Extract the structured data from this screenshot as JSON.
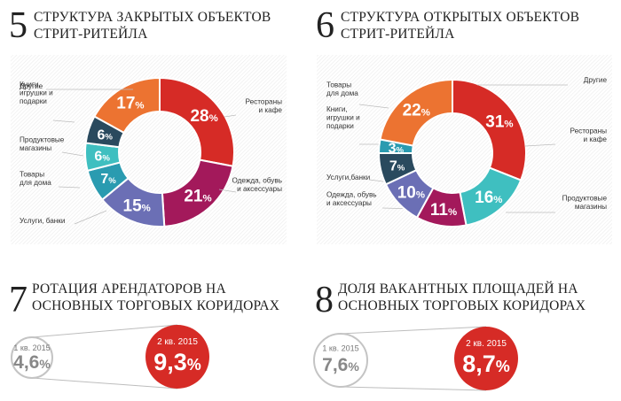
{
  "chart_data": [
    {
      "type": "pie",
      "number": "5",
      "title": [
        "СТРУКТУРА ЗАКРЫТЫХ ОБЪЕКТОВ",
        "СТРИТ-РИТЕЙЛА"
      ],
      "slices": [
        {
          "value": 28,
          "label": "28",
          "name": [
            "Рестораны",
            "и кафе"
          ],
          "color": "#d62b26"
        },
        {
          "value": 21,
          "label": "21",
          "name": [
            "Одежда, обувь",
            "и аксессуары"
          ],
          "color": "#a3195b"
        },
        {
          "value": 15,
          "label": "15",
          "name": [
            "Услуги, банки"
          ],
          "color": "#6b6fb5"
        },
        {
          "value": 7,
          "label": "7",
          "name": [
            "Товары",
            "для дома"
          ],
          "color": "#2a9bb0"
        },
        {
          "value": 6,
          "label": "6",
          "name": [
            "Продуктовые",
            "магазины"
          ],
          "color": "#3fbfc0"
        },
        {
          "value": 6,
          "label": "6",
          "name": [
            "Книги,",
            "игрушки и",
            "подарки"
          ],
          "color": "#2a4a5e"
        },
        {
          "value": 17,
          "label": "17",
          "name": [
            "Другие"
          ],
          "color": "#ec7331"
        }
      ]
    },
    {
      "type": "pie",
      "number": "6",
      "title": [
        "СТРУКТУРА ОТКРЫТЫХ ОБЪЕКТОВ",
        "СТРИТ-РИТЕЙЛА"
      ],
      "slices": [
        {
          "value": 31,
          "label": "31",
          "name": [
            "Рестораны",
            "и кафе"
          ],
          "color": "#d62b26"
        },
        {
          "value": 16,
          "label": "16",
          "name": [
            "Продуктовые",
            "магазины"
          ],
          "color": "#3fbfc0"
        },
        {
          "value": 11,
          "label": "11",
          "name": [
            "Одежда, обувь",
            "и аксессуары"
          ],
          "color": "#a3195b"
        },
        {
          "value": 10,
          "label": "10",
          "name": [
            "Услуги,банки"
          ],
          "color": "#6b6fb5"
        },
        {
          "value": 7,
          "label": "7",
          "name": [
            "Книги,",
            "игрушки и",
            "подарки"
          ],
          "color": "#2a4a5e"
        },
        {
          "value": 3,
          "label": "3",
          "name": [
            "Товары",
            "для дома"
          ],
          "color": "#2a9bb0"
        },
        {
          "value": 22,
          "label": "22",
          "name": [
            "Другие"
          ],
          "color": "#ec7331"
        }
      ]
    },
    {
      "type": "bubble-compare",
      "number": "7",
      "title": [
        "РОТАЦИЯ АРЕНДАТОРОВ НА",
        "ОСНОВНЫХ ТОРГОВЫХ КОРИДОРАХ"
      ],
      "items": [
        {
          "label": "1 кв. 2015",
          "value": 4.6,
          "value_text": "4,6%"
        },
        {
          "label": "2 кв. 2015",
          "value": 9.3,
          "value_text": "9,3%"
        }
      ]
    },
    {
      "type": "bubble-compare",
      "number": "8",
      "title": [
        "ДОЛЯ ВАКАНТНЫХ ПЛОЩАДЕЙ НА",
        "ОСНОВНЫХ ТОРГОВЫХ КОРИДОРАХ"
      ],
      "items": [
        {
          "label": "1 кв. 2015",
          "value": 7.6,
          "value_text": "7,6%"
        },
        {
          "label": "2 кв. 2015",
          "value": 8.7,
          "value_text": "8,7%"
        }
      ]
    }
  ]
}
